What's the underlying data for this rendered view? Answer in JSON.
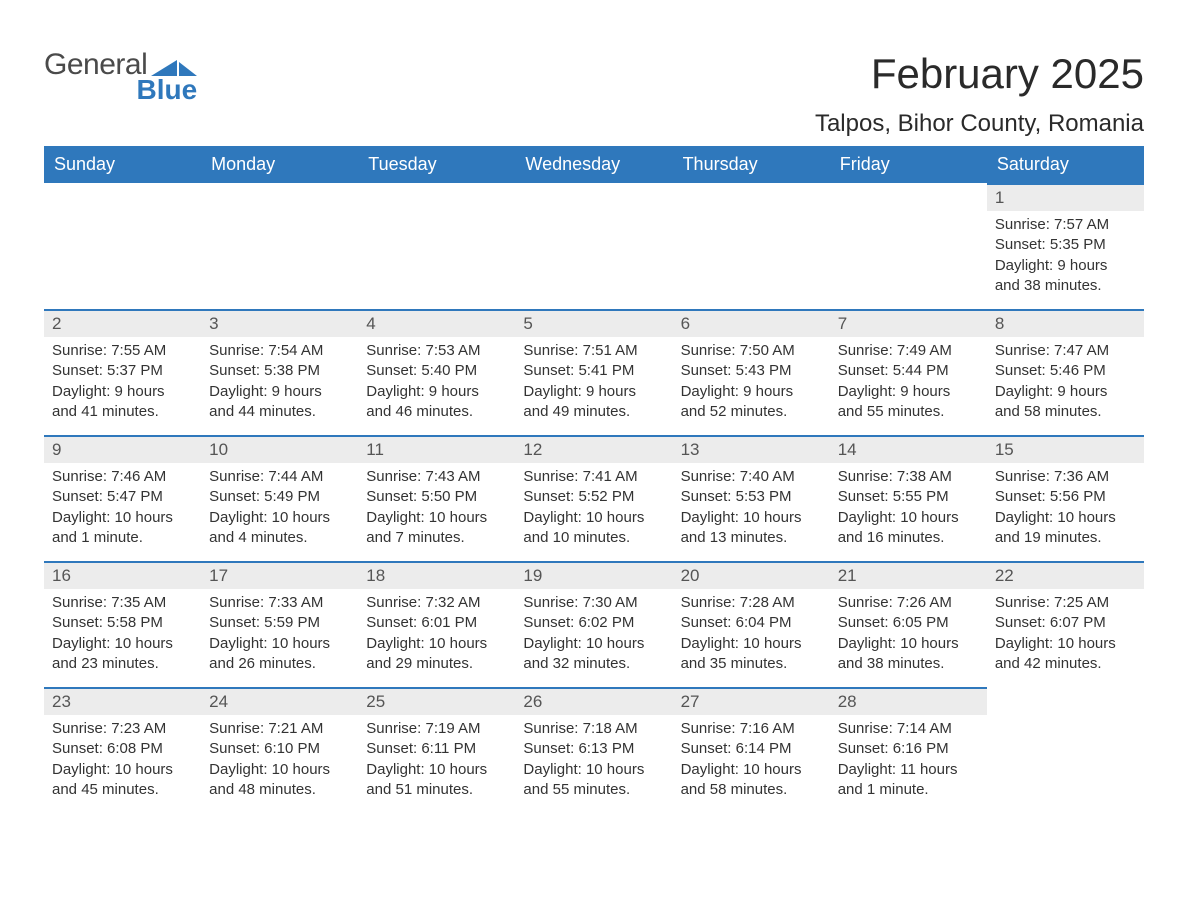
{
  "logo": {
    "text1": "General",
    "text2": "Blue",
    "accent_color": "#2f78bc"
  },
  "title": "February 2025",
  "location": "Talpos, Bihor County, Romania",
  "colors": {
    "header_bg": "#2f78bc",
    "header_text": "#ffffff",
    "row_border": "#2f78bc",
    "daynum_bg": "#ececec",
    "body_text": "#333333"
  },
  "fonts": {
    "title_size": 42,
    "location_size": 24,
    "dayheader_size": 18,
    "daynum_size": 17,
    "body_size": 15
  },
  "day_headers": [
    "Sunday",
    "Monday",
    "Tuesday",
    "Wednesday",
    "Thursday",
    "Friday",
    "Saturday"
  ],
  "weeks": [
    [
      {
        "n": "",
        "sunrise": "",
        "sunset": "",
        "daylight": ""
      },
      {
        "n": "",
        "sunrise": "",
        "sunset": "",
        "daylight": ""
      },
      {
        "n": "",
        "sunrise": "",
        "sunset": "",
        "daylight": ""
      },
      {
        "n": "",
        "sunrise": "",
        "sunset": "",
        "daylight": ""
      },
      {
        "n": "",
        "sunrise": "",
        "sunset": "",
        "daylight": ""
      },
      {
        "n": "",
        "sunrise": "",
        "sunset": "",
        "daylight": ""
      },
      {
        "n": "1",
        "sunrise": "Sunrise: 7:57 AM",
        "sunset": "Sunset: 5:35 PM",
        "daylight": "Daylight: 9 hours and 38 minutes."
      }
    ],
    [
      {
        "n": "2",
        "sunrise": "Sunrise: 7:55 AM",
        "sunset": "Sunset: 5:37 PM",
        "daylight": "Daylight: 9 hours and 41 minutes."
      },
      {
        "n": "3",
        "sunrise": "Sunrise: 7:54 AM",
        "sunset": "Sunset: 5:38 PM",
        "daylight": "Daylight: 9 hours and 44 minutes."
      },
      {
        "n": "4",
        "sunrise": "Sunrise: 7:53 AM",
        "sunset": "Sunset: 5:40 PM",
        "daylight": "Daylight: 9 hours and 46 minutes."
      },
      {
        "n": "5",
        "sunrise": "Sunrise: 7:51 AM",
        "sunset": "Sunset: 5:41 PM",
        "daylight": "Daylight: 9 hours and 49 minutes."
      },
      {
        "n": "6",
        "sunrise": "Sunrise: 7:50 AM",
        "sunset": "Sunset: 5:43 PM",
        "daylight": "Daylight: 9 hours and 52 minutes."
      },
      {
        "n": "7",
        "sunrise": "Sunrise: 7:49 AM",
        "sunset": "Sunset: 5:44 PM",
        "daylight": "Daylight: 9 hours and 55 minutes."
      },
      {
        "n": "8",
        "sunrise": "Sunrise: 7:47 AM",
        "sunset": "Sunset: 5:46 PM",
        "daylight": "Daylight: 9 hours and 58 minutes."
      }
    ],
    [
      {
        "n": "9",
        "sunrise": "Sunrise: 7:46 AM",
        "sunset": "Sunset: 5:47 PM",
        "daylight": "Daylight: 10 hours and 1 minute."
      },
      {
        "n": "10",
        "sunrise": "Sunrise: 7:44 AM",
        "sunset": "Sunset: 5:49 PM",
        "daylight": "Daylight: 10 hours and 4 minutes."
      },
      {
        "n": "11",
        "sunrise": "Sunrise: 7:43 AM",
        "sunset": "Sunset: 5:50 PM",
        "daylight": "Daylight: 10 hours and 7 minutes."
      },
      {
        "n": "12",
        "sunrise": "Sunrise: 7:41 AM",
        "sunset": "Sunset: 5:52 PM",
        "daylight": "Daylight: 10 hours and 10 minutes."
      },
      {
        "n": "13",
        "sunrise": "Sunrise: 7:40 AM",
        "sunset": "Sunset: 5:53 PM",
        "daylight": "Daylight: 10 hours and 13 minutes."
      },
      {
        "n": "14",
        "sunrise": "Sunrise: 7:38 AM",
        "sunset": "Sunset: 5:55 PM",
        "daylight": "Daylight: 10 hours and 16 minutes."
      },
      {
        "n": "15",
        "sunrise": "Sunrise: 7:36 AM",
        "sunset": "Sunset: 5:56 PM",
        "daylight": "Daylight: 10 hours and 19 minutes."
      }
    ],
    [
      {
        "n": "16",
        "sunrise": "Sunrise: 7:35 AM",
        "sunset": "Sunset: 5:58 PM",
        "daylight": "Daylight: 10 hours and 23 minutes."
      },
      {
        "n": "17",
        "sunrise": "Sunrise: 7:33 AM",
        "sunset": "Sunset: 5:59 PM",
        "daylight": "Daylight: 10 hours and 26 minutes."
      },
      {
        "n": "18",
        "sunrise": "Sunrise: 7:32 AM",
        "sunset": "Sunset: 6:01 PM",
        "daylight": "Daylight: 10 hours and 29 minutes."
      },
      {
        "n": "19",
        "sunrise": "Sunrise: 7:30 AM",
        "sunset": "Sunset: 6:02 PM",
        "daylight": "Daylight: 10 hours and 32 minutes."
      },
      {
        "n": "20",
        "sunrise": "Sunrise: 7:28 AM",
        "sunset": "Sunset: 6:04 PM",
        "daylight": "Daylight: 10 hours and 35 minutes."
      },
      {
        "n": "21",
        "sunrise": "Sunrise: 7:26 AM",
        "sunset": "Sunset: 6:05 PM",
        "daylight": "Daylight: 10 hours and 38 minutes."
      },
      {
        "n": "22",
        "sunrise": "Sunrise: 7:25 AM",
        "sunset": "Sunset: 6:07 PM",
        "daylight": "Daylight: 10 hours and 42 minutes."
      }
    ],
    [
      {
        "n": "23",
        "sunrise": "Sunrise: 7:23 AM",
        "sunset": "Sunset: 6:08 PM",
        "daylight": "Daylight: 10 hours and 45 minutes."
      },
      {
        "n": "24",
        "sunrise": "Sunrise: 7:21 AM",
        "sunset": "Sunset: 6:10 PM",
        "daylight": "Daylight: 10 hours and 48 minutes."
      },
      {
        "n": "25",
        "sunrise": "Sunrise: 7:19 AM",
        "sunset": "Sunset: 6:11 PM",
        "daylight": "Daylight: 10 hours and 51 minutes."
      },
      {
        "n": "26",
        "sunrise": "Sunrise: 7:18 AM",
        "sunset": "Sunset: 6:13 PM",
        "daylight": "Daylight: 10 hours and 55 minutes."
      },
      {
        "n": "27",
        "sunrise": "Sunrise: 7:16 AM",
        "sunset": "Sunset: 6:14 PM",
        "daylight": "Daylight: 10 hours and 58 minutes."
      },
      {
        "n": "28",
        "sunrise": "Sunrise: 7:14 AM",
        "sunset": "Sunset: 6:16 PM",
        "daylight": "Daylight: 11 hours and 1 minute."
      },
      {
        "n": "",
        "sunrise": "",
        "sunset": "",
        "daylight": ""
      }
    ]
  ]
}
